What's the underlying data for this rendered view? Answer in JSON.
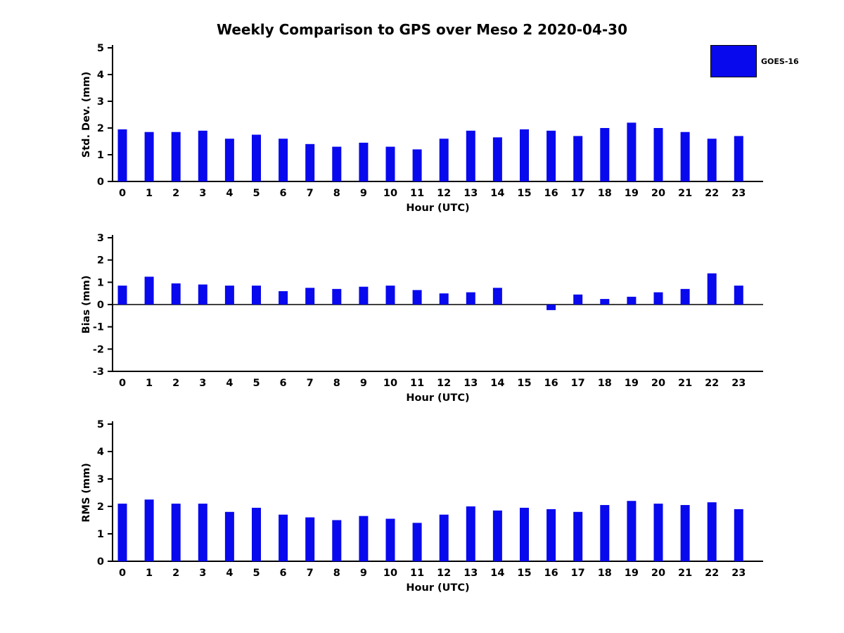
{
  "figure": {
    "title": "Weekly Comparison to GPS over Meso 2 2020-04-30",
    "legend": {
      "label": "GOES-16",
      "color": "#0909ee"
    }
  },
  "chart_data": [
    {
      "type": "bar",
      "title": "",
      "ylabel": "Std. Dev. (mm)",
      "xlabel": "Hour (UTC)",
      "ylim": [
        0,
        5
      ],
      "yticks": [
        0,
        1,
        2,
        3,
        4,
        5
      ],
      "grid": false,
      "legend_position": "top-right-outside",
      "categories": [
        0,
        1,
        2,
        3,
        4,
        5,
        6,
        7,
        8,
        9,
        10,
        11,
        12,
        13,
        14,
        15,
        16,
        17,
        18,
        19,
        20,
        21,
        22,
        23
      ],
      "series": [
        {
          "name": "GOES-16",
          "color": "#0909ee",
          "values": [
            1.95,
            1.85,
            1.85,
            1.9,
            1.6,
            1.75,
            1.6,
            1.4,
            1.3,
            1.45,
            1.3,
            1.2,
            1.6,
            1.9,
            1.65,
            1.95,
            1.9,
            1.7,
            2.0,
            2.2,
            2.0,
            1.85,
            1.6,
            1.7
          ]
        }
      ]
    },
    {
      "type": "bar",
      "title": "",
      "ylabel": "Bias (mm)",
      "xlabel": "Hour (UTC)",
      "ylim": [
        -3,
        3
      ],
      "yticks": [
        -3,
        -2,
        -1,
        0,
        1,
        2,
        3
      ],
      "grid": false,
      "categories": [
        0,
        1,
        2,
        3,
        4,
        5,
        6,
        7,
        8,
        9,
        10,
        11,
        12,
        13,
        14,
        15,
        16,
        17,
        18,
        19,
        20,
        21,
        22,
        23
      ],
      "series": [
        {
          "name": "GOES-16",
          "color": "#0909ee",
          "values": [
            0.85,
            1.25,
            0.95,
            0.9,
            0.85,
            0.85,
            0.6,
            0.75,
            0.7,
            0.8,
            0.85,
            0.65,
            0.5,
            0.55,
            0.75,
            0.0,
            -0.25,
            0.45,
            0.25,
            0.35,
            0.55,
            0.7,
            1.4,
            0.85
          ]
        }
      ]
    },
    {
      "type": "bar",
      "title": "",
      "ylabel": "RMS (mm)",
      "xlabel": "Hour (UTC)",
      "ylim": [
        0,
        5
      ],
      "yticks": [
        0,
        1,
        2,
        3,
        4,
        5
      ],
      "grid": false,
      "categories": [
        0,
        1,
        2,
        3,
        4,
        5,
        6,
        7,
        8,
        9,
        10,
        11,
        12,
        13,
        14,
        15,
        16,
        17,
        18,
        19,
        20,
        21,
        22,
        23
      ],
      "series": [
        {
          "name": "GOES-16",
          "color": "#0909ee",
          "values": [
            2.1,
            2.25,
            2.1,
            2.1,
            1.8,
            1.95,
            1.7,
            1.6,
            1.5,
            1.65,
            1.55,
            1.4,
            1.7,
            2.0,
            1.85,
            1.95,
            1.9,
            1.8,
            2.05,
            2.2,
            2.1,
            2.05,
            2.15,
            1.9
          ]
        }
      ]
    }
  ]
}
